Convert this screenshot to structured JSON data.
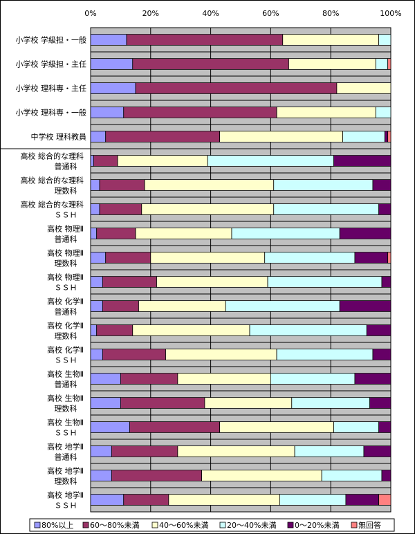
{
  "chart_data": {
    "type": "bar",
    "orientation": "horizontal",
    "stacked": true,
    "percent": true,
    "xlim": [
      0,
      100
    ],
    "x_ticks": [
      "0%",
      "20%",
      "40%",
      "60%",
      "80%",
      "100%"
    ],
    "grid": true,
    "legend_position": "bottom",
    "categories": [
      [
        "小学校 学級担・一般"
      ],
      [
        "小学校 学級担・主任"
      ],
      [
        "小学校 理科専・主任"
      ],
      [
        "小学校 理科専・一般"
      ],
      [
        "中学校 理科教員"
      ],
      [
        "高校  総合的な理科",
        "普通科"
      ],
      [
        "高校  総合的な理科",
        "理数科"
      ],
      [
        "高校  総合的な理科",
        "ＳＳＨ"
      ],
      [
        "高校  物理Ⅱ",
        "普通科"
      ],
      [
        "高校  物理Ⅱ",
        "理数科"
      ],
      [
        "高校  物理Ⅱ",
        "ＳＳＨ"
      ],
      [
        "高校  化学Ⅱ",
        "普通科"
      ],
      [
        "高校  化学Ⅱ",
        "理数科"
      ],
      [
        "高校  化学Ⅱ",
        "ＳＳＨ"
      ],
      [
        "高校  生物Ⅱ",
        "普通科"
      ],
      [
        "高校  生物Ⅱ",
        "理数科"
      ],
      [
        "高校  生物Ⅱ",
        "ＳＳＨ"
      ],
      [
        "高校  地学Ⅱ",
        "普通科"
      ],
      [
        "高校  地学Ⅱ",
        "理数科"
      ],
      [
        "高校  地学Ⅱ",
        "ＳＳＨ"
      ]
    ],
    "series": [
      {
        "name": "80%以上",
        "color": "#9999FF",
        "values": [
          12,
          14,
          15,
          11,
          5,
          1,
          3,
          3,
          2,
          5,
          4,
          4,
          2,
          4,
          10,
          10,
          13,
          7,
          7,
          11
        ]
      },
      {
        "name": "60～80%未満",
        "color": "#993366",
        "values": [
          52,
          52,
          67,
          51,
          38,
          8,
          15,
          14,
          13,
          15,
          18,
          12,
          12,
          21,
          19,
          28,
          30,
          22,
          30,
          15
        ]
      },
      {
        "name": "40～60%未満",
        "color": "#FFFFCC",
        "values": [
          32,
          29,
          18,
          33,
          41,
          30,
          43,
          44,
          32,
          38,
          37,
          29,
          39,
          37,
          31,
          29,
          38,
          39,
          40,
          37
        ]
      },
      {
        "name": "20～40%未満",
        "color": "#CCFFFF",
        "values": [
          4,
          4,
          0,
          5,
          14,
          42,
          33,
          35,
          36,
          30,
          38,
          38,
          39,
          32,
          28,
          26,
          15,
          23,
          20,
          22
        ]
      },
      {
        "name": "0～20%未満",
        "color": "#660066",
        "values": [
          0,
          0,
          0,
          0,
          1,
          19,
          6,
          4,
          17,
          11,
          3,
          17,
          8,
          6,
          12,
          7,
          4,
          9,
          3,
          11
        ]
      },
      {
        "name": "無回答",
        "color": "#FF8080",
        "values": [
          0,
          1,
          0,
          0,
          1,
          0,
          0,
          0,
          0,
          1,
          0,
          0,
          0,
          0,
          0,
          0,
          0,
          0,
          0,
          4
        ]
      }
    ]
  }
}
